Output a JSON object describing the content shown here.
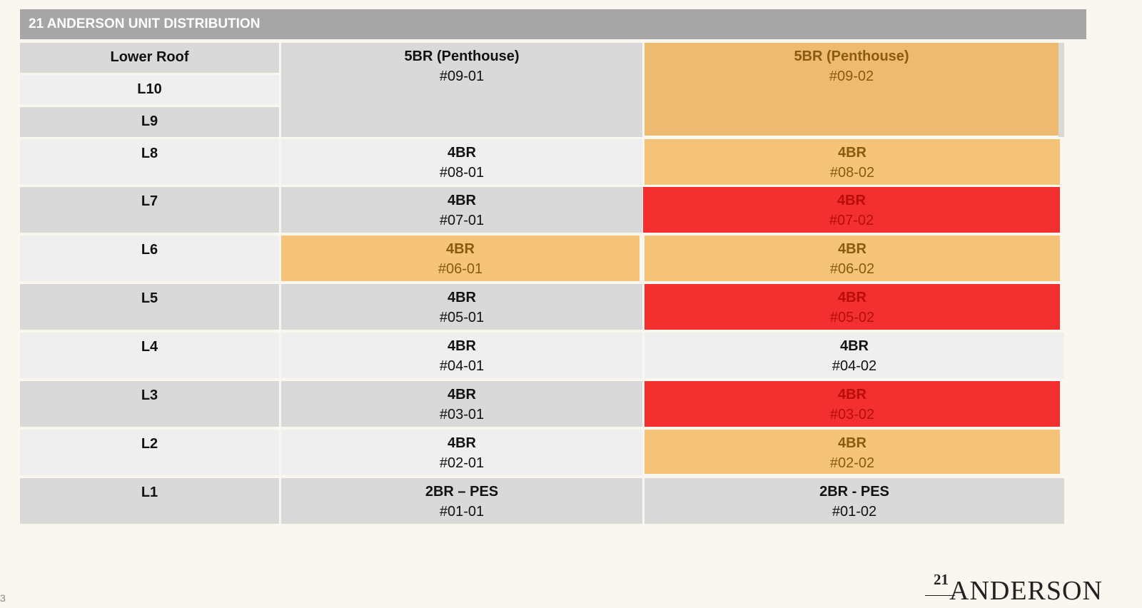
{
  "title": "21 ANDERSON UNIT DISTRIBUTION",
  "levels": {
    "lower_roof": "Lower Roof",
    "l10": "L10",
    "l9": "L9",
    "l8": "L8",
    "l7": "L7",
    "l6": "L6",
    "l5": "L5",
    "l4": "L4",
    "l3": "L3",
    "l2": "L2",
    "l1": "L1"
  },
  "units": {
    "u0901": {
      "type": "5BR (Penthouse)",
      "no": "#09-01",
      "status": "default"
    },
    "u0902": {
      "type": "5BR (Penthouse)",
      "no": "#09-02",
      "status": "orange"
    },
    "u0801": {
      "type": "4BR",
      "no": "#08-01",
      "status": "default"
    },
    "u0802": {
      "type": "4BR",
      "no": "#08-02",
      "status": "orange"
    },
    "u0701": {
      "type": "4BR",
      "no": "#07-01",
      "status": "default"
    },
    "u0702": {
      "type": "4BR",
      "no": "#07-02",
      "status": "red"
    },
    "u0601": {
      "type": "4BR",
      "no": "#06-01",
      "status": "orange"
    },
    "u0602": {
      "type": "4BR",
      "no": "#06-02",
      "status": "orange"
    },
    "u0501": {
      "type": "4BR",
      "no": "#05-01",
      "status": "default"
    },
    "u0502": {
      "type": "4BR",
      "no": "#05-02",
      "status": "red"
    },
    "u0401": {
      "type": "4BR",
      "no": "#04-01",
      "status": "default"
    },
    "u0402": {
      "type": "4BR",
      "no": "#04-02",
      "status": "default"
    },
    "u0301": {
      "type": "4BR",
      "no": "#03-01",
      "status": "default"
    },
    "u0302": {
      "type": "4BR",
      "no": "#03-02",
      "status": "red"
    },
    "u0201": {
      "type": "4BR",
      "no": "#02-01",
      "status": "default"
    },
    "u0202": {
      "type": "4BR",
      "no": "#02-02",
      "status": "orange"
    },
    "u0101": {
      "type": "2BR – PES",
      "no": "#01-01",
      "status": "default"
    },
    "u0102": {
      "type": "2BR - PES",
      "no": "#01-02",
      "status": "default"
    }
  },
  "colors": {
    "header": "#a6a6a6",
    "row_dark": "#d9d9d9",
    "row_light": "#efefef",
    "orange": "#f5c478",
    "red": "#f42f2f"
  },
  "logo": {
    "number": "21",
    "name": "ANDERSON"
  },
  "page_number": "3"
}
